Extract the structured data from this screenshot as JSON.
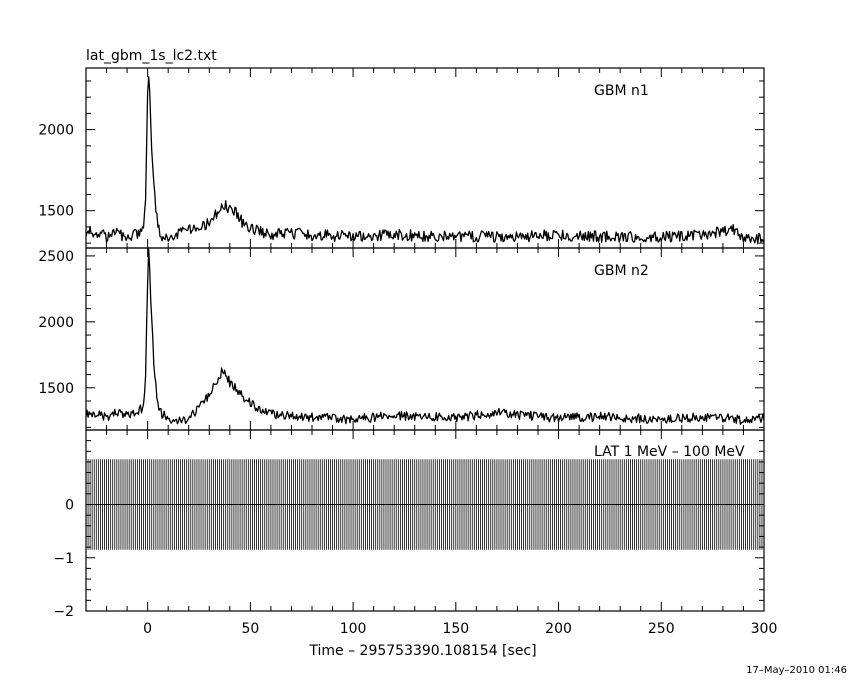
{
  "file_title": "lat_gbm_1s_lc2.txt",
  "timestamp": "17–May–2010 01:46",
  "chart_data": [
    {
      "type": "line",
      "panel_label": "GBM n1",
      "xlim": [
        -30,
        300
      ],
      "ylim": [
        1270,
        2380
      ],
      "yticks": [
        2000,
        1500
      ],
      "series": [
        {
          "x": [
            -27,
            -20,
            -15,
            -10,
            -5,
            -2,
            -1,
            0,
            0.5,
            1,
            2,
            3,
            4,
            5,
            7,
            10,
            15,
            20,
            25,
            30,
            33,
            36,
            38,
            40,
            43,
            46,
            50,
            55,
            60,
            70,
            80,
            100,
            120,
            150,
            180,
            200,
            220,
            250,
            270,
            285,
            290,
            295,
            300
          ],
          "y": [
            1370,
            1340,
            1370,
            1330,
            1360,
            1400,
            1550,
            2200,
            2350,
            2250,
            1900,
            1700,
            1500,
            1400,
            1340,
            1320,
            1360,
            1390,
            1390,
            1430,
            1470,
            1510,
            1530,
            1500,
            1490,
            1430,
            1390,
            1370,
            1350,
            1360,
            1350,
            1340,
            1350,
            1340,
            1340,
            1350,
            1340,
            1340,
            1350,
            1390,
            1320,
            1330,
            1330
          ]
        }
      ]
    },
    {
      "type": "line",
      "panel_label": "GBM n2",
      "xlim": [
        -30,
        300
      ],
      "ylim": [
        1180,
        2560
      ],
      "yticks": [
        2500,
        2000,
        1500
      ],
      "series": [
        {
          "x": [
            -27,
            -20,
            -15,
            -10,
            -5,
            -2,
            -1,
            0,
            0.5,
            1,
            2,
            3,
            4,
            5,
            7,
            10,
            15,
            20,
            25,
            30,
            33,
            36,
            38,
            40,
            43,
            46,
            50,
            55,
            60,
            70,
            80,
            100,
            120,
            150,
            170,
            200,
            220,
            250,
            270,
            285,
            290,
            295,
            300
          ],
          "y": [
            1310,
            1280,
            1310,
            1290,
            1330,
            1350,
            1600,
            2300,
            2550,
            2400,
            2000,
            1700,
            1500,
            1380,
            1300,
            1270,
            1250,
            1270,
            1350,
            1440,
            1540,
            1620,
            1600,
            1540,
            1490,
            1440,
            1380,
            1330,
            1300,
            1290,
            1280,
            1260,
            1290,
            1270,
            1310,
            1270,
            1280,
            1260,
            1280,
            1270,
            1250,
            1260,
            1270
          ]
        }
      ]
    },
    {
      "type": "bar",
      "panel_label": "LAT 1 MeV – 100 MeV",
      "xlim": [
        -30,
        300
      ],
      "ylim": [
        -2,
        1.4
      ],
      "yticks": [
        0,
        -1,
        -2
      ],
      "bin_width": 1,
      "band": [
        -0.85,
        0.85
      ],
      "values_all_bins": 0
    }
  ],
  "shared_x": {
    "label": "Time – 295753390.108154 [sec]",
    "ticks": [
      0,
      50,
      100,
      150,
      200,
      250,
      300
    ]
  }
}
